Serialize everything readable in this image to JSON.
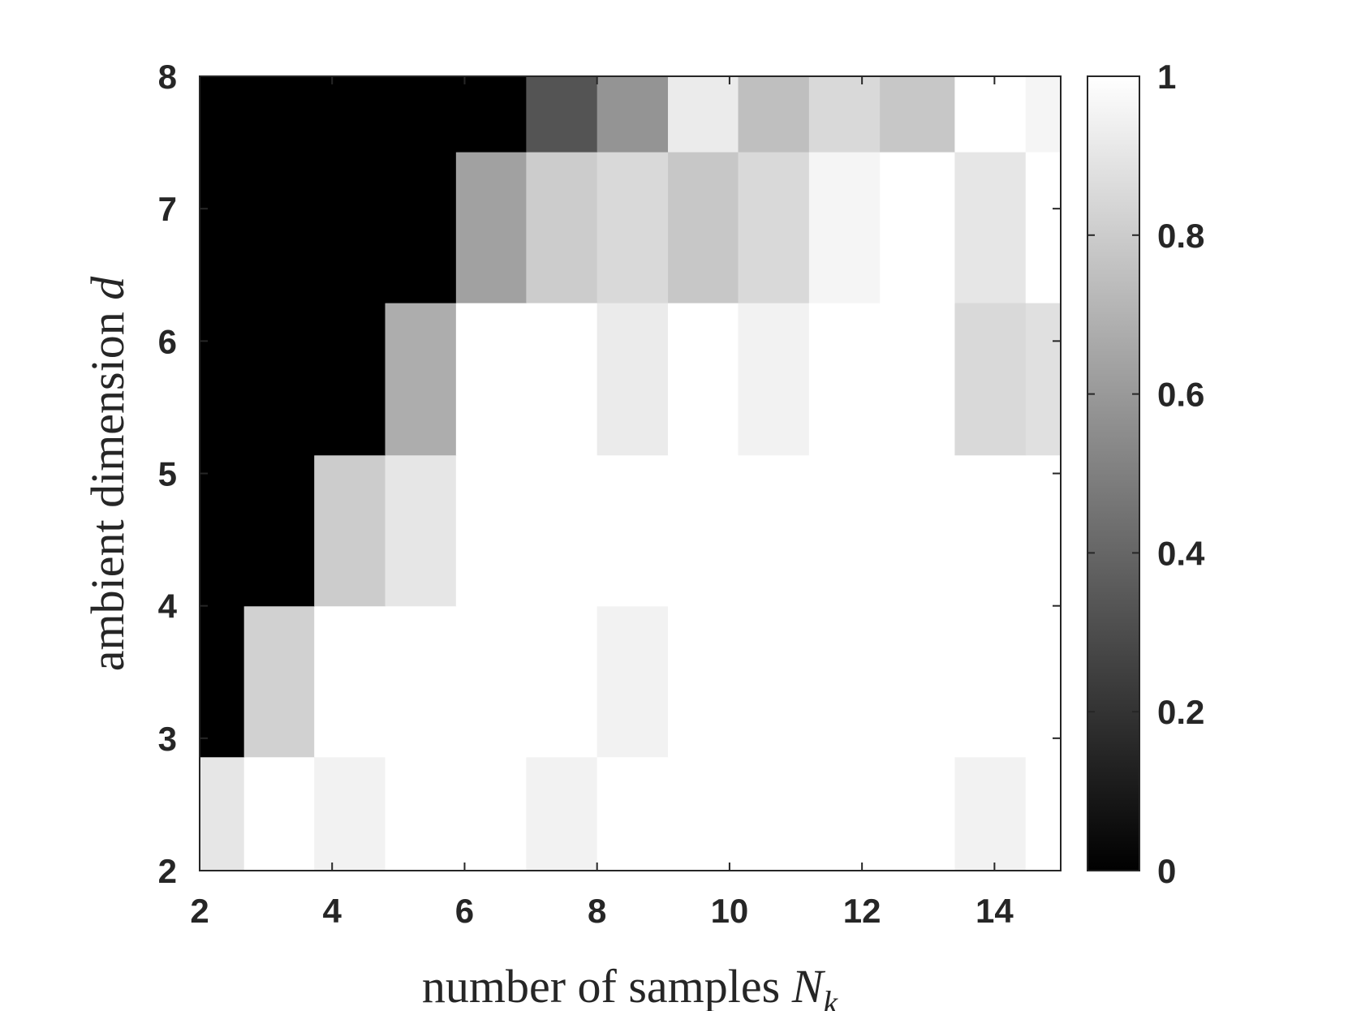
{
  "chart_data": {
    "type": "heatmap",
    "xlabel": "number of samples",
    "xlabel_symbol": "N",
    "xlabel_subscript": "k",
    "ylabel": "ambient dimension",
    "ylabel_symbol": "d",
    "x_ticks": [
      "2",
      "4",
      "6",
      "8",
      "10",
      "12",
      "14"
    ],
    "y_ticks": [
      "2",
      "3",
      "4",
      "5",
      "6",
      "7",
      "8"
    ],
    "xlim": [
      2,
      15
    ],
    "ylim": [
      2,
      8
    ],
    "colormap": "gray",
    "colorbar": {
      "ticks": [
        "0",
        "0.2",
        "0.4",
        "0.6",
        "0.8",
        "1"
      ],
      "range": [
        0,
        1
      ]
    },
    "x_edges": [
      2,
      2.67,
      3.73,
      4.8,
      5.87,
      6.93,
      8.0,
      9.07,
      10.13,
      11.2,
      12.27,
      13.4,
      14.47,
      15
    ],
    "y_edges": [
      2,
      2.86,
      4,
      5.14,
      6.29,
      7.43,
      8
    ],
    "values": [
      [
        0.9,
        1.0,
        0.95,
        1.0,
        1.0,
        0.95,
        1.0,
        1.0,
        1.0,
        1.0,
        1.0,
        0.95,
        1.0
      ],
      [
        0.0,
        0.82,
        1.0,
        1.0,
        1.0,
        1.0,
        0.95,
        1.0,
        1.0,
        1.0,
        1.0,
        1.0,
        1.0
      ],
      [
        0.0,
        0.0,
        0.8,
        0.9,
        1.0,
        1.0,
        1.0,
        1.0,
        1.0,
        1.0,
        1.0,
        1.0,
        1.0
      ],
      [
        0.0,
        0.0,
        0.0,
        0.68,
        1.0,
        1.0,
        0.92,
        1.0,
        0.95,
        1.0,
        1.0,
        0.85,
        0.88
      ],
      [
        0.0,
        0.0,
        0.0,
        0.0,
        0.63,
        0.8,
        0.85,
        0.78,
        0.85,
        0.96,
        1.0,
        0.9,
        1.0
      ],
      [
        0.0,
        0.0,
        0.0,
        0.0,
        0.0,
        0.33,
        0.58,
        0.92,
        0.75,
        0.85,
        0.78,
        1.0,
        0.96
      ]
    ]
  }
}
